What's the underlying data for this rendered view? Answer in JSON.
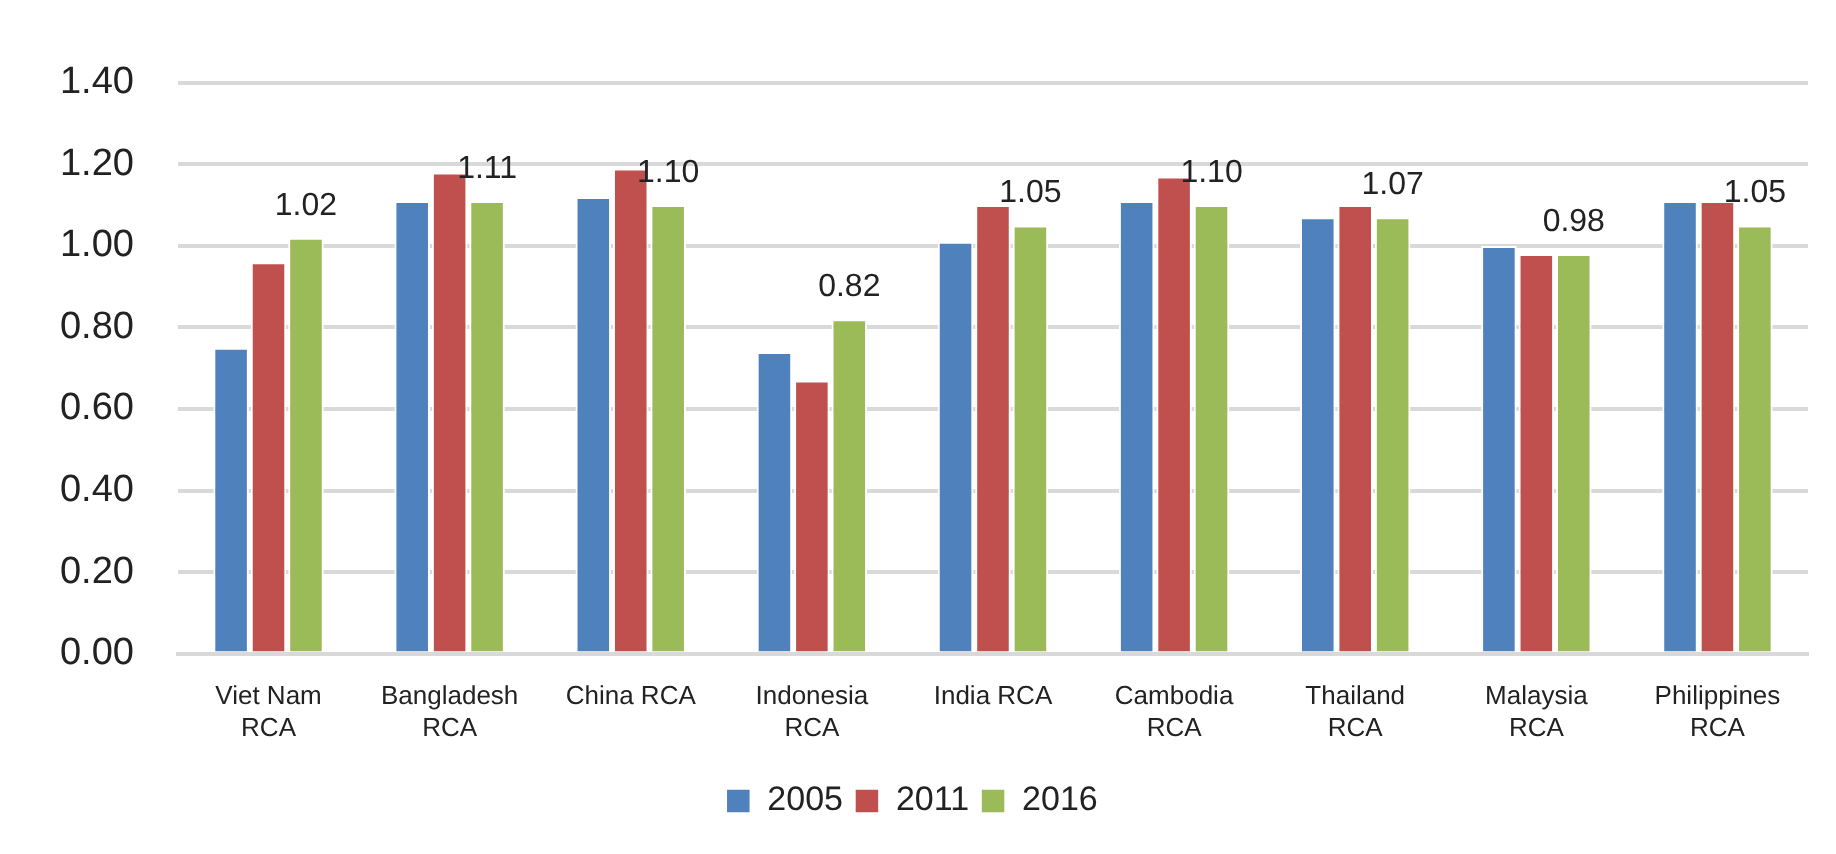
{
  "chart_data": {
    "type": "bar",
    "categories": [
      "Viet Nam RCA",
      "Bangladesh RCA",
      "China RCA",
      "Indonesia RCA",
      "India RCA",
      "Cambodia RCA",
      "Thailand RCA",
      "Malaysia RCA",
      "Philippines RCA"
    ],
    "series": [
      {
        "name": "2005",
        "color": "#4f81bd",
        "values": [
          0.75,
          1.11,
          1.12,
          0.74,
          1.01,
          1.11,
          1.07,
          1.0,
          1.11
        ]
      },
      {
        "name": "2011",
        "color": "#c0504d",
        "values": [
          0.96,
          1.18,
          1.19,
          0.67,
          1.1,
          1.17,
          1.1,
          0.98,
          1.11
        ]
      },
      {
        "name": "2016",
        "color": "#9bbb59",
        "values": [
          1.02,
          1.11,
          1.1,
          0.82,
          1.05,
          1.1,
          1.07,
          0.98,
          1.05
        ],
        "value_labels": [
          "1.02",
          "1.11",
          "1.10",
          "0.82",
          "1.05",
          "1.10",
          "1.07",
          "0.98",
          "1.05"
        ]
      }
    ],
    "ylim": [
      0,
      1.4
    ],
    "yticks": [
      {
        "value": 0,
        "label": "0.00"
      },
      {
        "value": 0.2,
        "label": "0.20"
      },
      {
        "value": 0.4,
        "label": "0.40"
      },
      {
        "value": 0.6,
        "label": "0.60"
      },
      {
        "value": 0.8,
        "label": "0.80"
      },
      {
        "value": 1,
        "label": "1.00"
      },
      {
        "value": 1.2,
        "label": "1.20"
      },
      {
        "value": 1.4,
        "label": "1.40"
      }
    ],
    "grid": "y",
    "legend": "bottom"
  }
}
